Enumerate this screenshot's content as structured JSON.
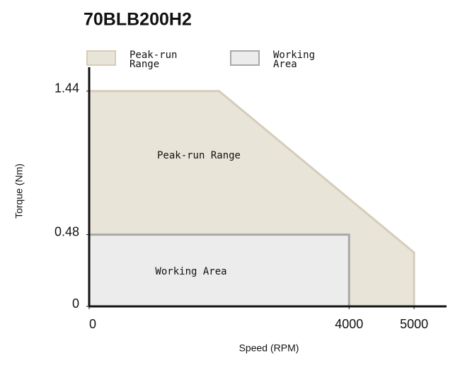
{
  "chart_data": {
    "type": "area",
    "title": "70BLB200H2",
    "x_label": "Speed (RPM)",
    "y_label": "Torque (Nm)",
    "xlim": [
      0,
      5500
    ],
    "ylim": [
      0,
      1.6
    ],
    "xticks": [
      0,
      4000,
      5000
    ],
    "yticks": [
      0,
      0.48,
      1.44
    ],
    "series": [
      {
        "name": "Peak-run Range",
        "color": "#e8e4d8",
        "edge": "#d5cdba",
        "x": [
          0,
          0,
          2000,
          5000,
          5000
        ],
        "values": [
          0,
          1.44,
          1.44,
          0.36,
          0
        ]
      },
      {
        "name": "Working Area",
        "color": "#ececec",
        "edge": "#a9a9a9",
        "x": [
          0,
          0,
          4000,
          4000
        ],
        "values": [
          0,
          0.48,
          0.48,
          0
        ]
      }
    ]
  }
}
